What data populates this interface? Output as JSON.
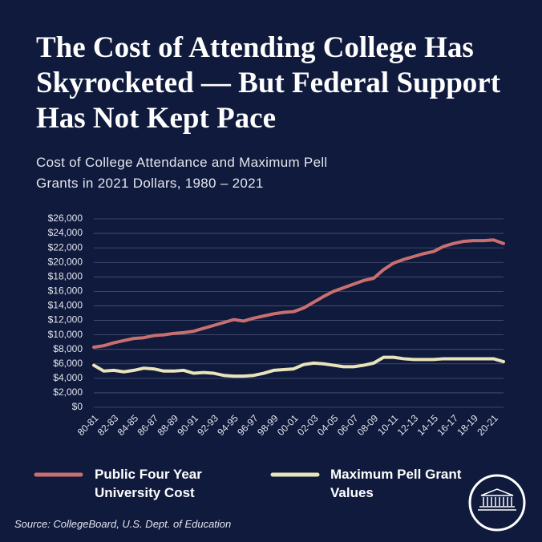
{
  "chart_data": {
    "type": "line",
    "title": "The Cost of Attending College Has Skyrocketed — But Federal Support Has Not Kept Pace",
    "subtitle": "Cost of College Attendance and Maximum Pell Grants in 2021 Dollars, 1980 – 2021",
    "source": "Source: CollegeBoard, U.S. Dept. of Education",
    "categories": [
      "80-81",
      null,
      "82-83",
      null,
      "84-85",
      null,
      "86-87",
      null,
      "88-89",
      null,
      "90-91",
      null,
      "92-93",
      null,
      "94-95",
      null,
      "96-97",
      null,
      "98-99",
      null,
      "00-01",
      null,
      "02-03",
      null,
      "04-05",
      null,
      "06-07",
      null,
      "08-09",
      null,
      "10-11",
      null,
      "12-13",
      null,
      "14-15",
      null,
      "16-17",
      null,
      "18-19",
      null,
      "20-21",
      null
    ],
    "series": [
      {
        "name": "Public Four Year University Cost",
        "color": "#c96f70",
        "values": [
          8300,
          8500,
          8900,
          9200,
          9500,
          9600,
          9900,
          10000,
          10200,
          10300,
          10500,
          10900,
          11300,
          11700,
          12100,
          11900,
          12300,
          12600,
          12900,
          13100,
          13200,
          13700,
          14500,
          15300,
          16000,
          16500,
          17000,
          17500,
          17800,
          19000,
          19900,
          20400,
          20800,
          21200,
          21500,
          22200,
          22600,
          22900,
          23000,
          23000,
          23100,
          22600
        ]
      },
      {
        "name": "Maximum Pell Grant Values",
        "color": "#e9e4ba",
        "values": [
          5800,
          5000,
          5100,
          4900,
          5100,
          5400,
          5300,
          5000,
          5000,
          5100,
          4700,
          4800,
          4700,
          4400,
          4300,
          4300,
          4400,
          4700,
          5100,
          5200,
          5300,
          5900,
          6100,
          6000,
          5800,
          5600,
          5600,
          5800,
          6100,
          6900,
          6900,
          6700,
          6600,
          6600,
          6600,
          6700,
          6700,
          6700,
          6700,
          6700,
          6700,
          6300
        ]
      }
    ],
    "ylim": [
      0,
      26000
    ],
    "yticks": [
      {
        "value": 0,
        "label": "$0"
      },
      {
        "value": 2000,
        "label": "$2,000"
      },
      {
        "value": 4000,
        "label": "$4,000"
      },
      {
        "value": 6000,
        "label": "$6,000"
      },
      {
        "value": 8000,
        "label": "$8,000"
      },
      {
        "value": 10000,
        "label": "$10,000"
      },
      {
        "value": 12000,
        "label": "$12,000"
      },
      {
        "value": 14000,
        "label": "$14,000"
      },
      {
        "value": 16000,
        "label": "$16,000"
      },
      {
        "value": 18000,
        "label": "$18,000"
      },
      {
        "value": 20000,
        "label": "$20,000"
      },
      {
        "value": 22000,
        "label": "$22,000"
      },
      {
        "value": 24000,
        "label": "$24,000"
      },
      {
        "value": 26000,
        "label": "$26,000"
      }
    ],
    "grid": true
  }
}
